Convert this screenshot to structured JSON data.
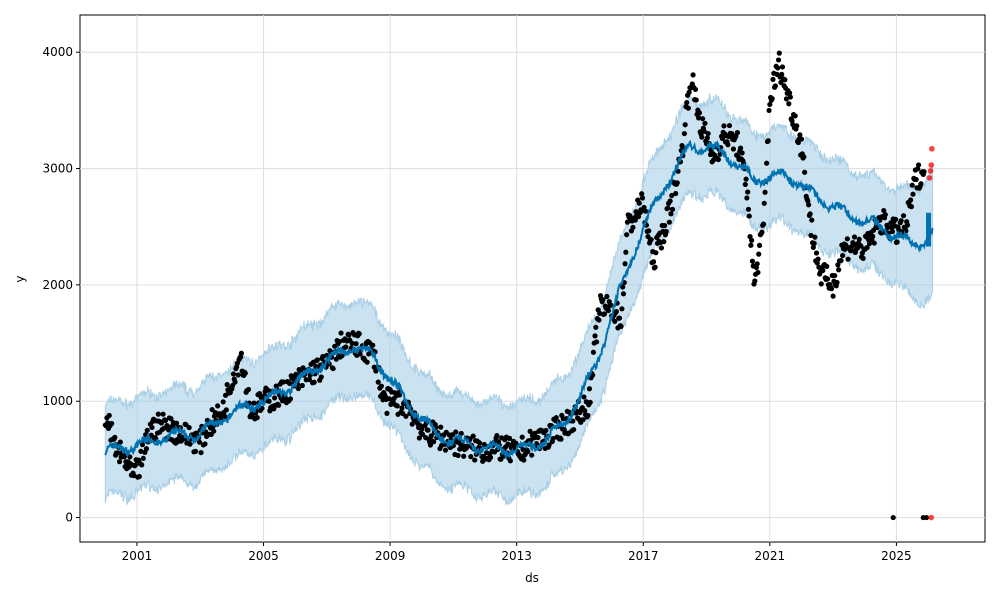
{
  "chart_data": {
    "type": "line",
    "title": "",
    "xlabel": "ds",
    "ylabel": "y",
    "xlim": [
      1999.2,
      2027.8
    ],
    "ylim": [
      -210,
      4320
    ],
    "grid": true,
    "x_ticks": [
      "2001",
      "2005",
      "2009",
      "2013",
      "2017",
      "2021",
      "2025"
    ],
    "y_ticks": [
      "0",
      "1000",
      "2000",
      "3000",
      "4000"
    ],
    "colors": {
      "observed": "#000000",
      "forecast_points": "#ff0000",
      "yhat": "#0072B2",
      "interval": "#a9cfe6"
    },
    "observed": [
      [
        2000.0,
        900
      ],
      [
        2000.3,
        600
      ],
      [
        2000.6,
        500
      ],
      [
        2000.9,
        350
      ],
      [
        2001.1,
        450
      ],
      [
        2001.4,
        750
      ],
      [
        2001.8,
        800
      ],
      [
        2002.2,
        750
      ],
      [
        2002.6,
        700
      ],
      [
        2003.0,
        650
      ],
      [
        2003.3,
        800
      ],
      [
        2003.7,
        900
      ],
      [
        2004.0,
        1200
      ],
      [
        2004.3,
        1400
      ],
      [
        2004.6,
        900
      ],
      [
        2005.0,
        1000
      ],
      [
        2005.5,
        1050
      ],
      [
        2006.0,
        1150
      ],
      [
        2006.5,
        1250
      ],
      [
        2007.0,
        1300
      ],
      [
        2007.5,
        1500
      ],
      [
        2008.0,
        1480
      ],
      [
        2008.5,
        1400
      ],
      [
        2008.8,
        1000
      ],
      [
        2009.2,
        1000
      ],
      [
        2009.6,
        950
      ],
      [
        2010.0,
        750
      ],
      [
        2010.5,
        700
      ],
      [
        2011.0,
        650
      ],
      [
        2011.5,
        600
      ],
      [
        2012.0,
        580
      ],
      [
        2012.5,
        600
      ],
      [
        2013.0,
        550
      ],
      [
        2013.5,
        650
      ],
      [
        2014.0,
        700
      ],
      [
        2014.5,
        800
      ],
      [
        2015.0,
        900
      ],
      [
        2015.3,
        1000
      ],
      [
        2015.6,
        1800
      ],
      [
        2016.0,
        1800
      ],
      [
        2016.3,
        1700
      ],
      [
        2016.5,
        2500
      ],
      [
        2017.0,
        2700
      ],
      [
        2017.3,
        2200
      ],
      [
        2017.8,
        2600
      ],
      [
        2018.2,
        3100
      ],
      [
        2018.5,
        3800
      ],
      [
        2018.8,
        3400
      ],
      [
        2019.2,
        3100
      ],
      [
        2019.6,
        3300
      ],
      [
        2020.0,
        3200
      ],
      [
        2020.3,
        2800
      ],
      [
        2020.5,
        2000
      ],
      [
        2020.8,
        2500
      ],
      [
        2021.0,
        3600
      ],
      [
        2021.3,
        3900
      ],
      [
        2021.6,
        3600
      ],
      [
        2022.0,
        3200
      ],
      [
        2022.3,
        2500
      ],
      [
        2022.6,
        2100
      ],
      [
        2023.0,
        2000
      ],
      [
        2023.3,
        2300
      ],
      [
        2023.6,
        2350
      ],
      [
        2024.0,
        2300
      ],
      [
        2024.5,
        2550
      ],
      [
        2025.0,
        2450
      ],
      [
        2025.3,
        2500
      ],
      [
        2025.6,
        2900
      ],
      [
        2025.9,
        3000
      ]
    ],
    "observed_outliers": [
      [
        2024.9,
        0
      ],
      [
        2025.85,
        0
      ],
      [
        2025.95,
        0
      ]
    ],
    "future_actuals": [
      [
        2026.05,
        2920
      ],
      [
        2026.08,
        2980
      ],
      [
        2026.1,
        3030
      ],
      [
        2026.12,
        3170
      ],
      [
        2026.1,
        0
      ]
    ],
    "yhat": [
      [
        2000.0,
        570
      ],
      [
        2001.0,
        620
      ],
      [
        2002.0,
        700
      ],
      [
        2003.0,
        720
      ],
      [
        2004.0,
        900
      ],
      [
        2005.0,
        1000
      ],
      [
        2006.0,
        1150
      ],
      [
        2007.0,
        1350
      ],
      [
        2007.8,
        1470
      ],
      [
        2008.5,
        1380
      ],
      [
        2009.5,
        1000
      ],
      [
        2010.5,
        700
      ],
      [
        2011.5,
        620
      ],
      [
        2012.5,
        580
      ],
      [
        2013.5,
        600
      ],
      [
        2014.5,
        800
      ],
      [
        2015.5,
        1300
      ],
      [
        2016.2,
        1900
      ],
      [
        2017.0,
        2500
      ],
      [
        2017.8,
        2900
      ],
      [
        2018.5,
        3200
      ],
      [
        2019.5,
        3150
      ],
      [
        2020.5,
        2900
      ],
      [
        2021.5,
        2950
      ],
      [
        2022.5,
        2750
      ],
      [
        2023.5,
        2600
      ],
      [
        2024.5,
        2500
      ],
      [
        2025.5,
        2350
      ],
      [
        2026.0,
        2400
      ],
      [
        2026.15,
        2450
      ]
    ],
    "interval_halfwidth": [
      [
        2000.0,
        400
      ],
      [
        2025.0,
        400
      ],
      [
        2026.15,
        550
      ]
    ]
  }
}
